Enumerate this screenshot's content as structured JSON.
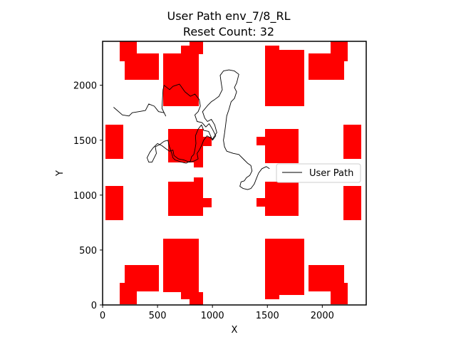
{
  "chart_data": {
    "type": "line",
    "title": "User Path env_7/8_RL",
    "subtitle": "Reset Count: 32",
    "xlabel": "X",
    "ylabel": "Y",
    "xlim": [
      0,
      2400
    ],
    "ylim": [
      0,
      2400
    ],
    "xticks": [
      0,
      500,
      1000,
      1500,
      2000
    ],
    "yticks": [
      0,
      500,
      1000,
      1500,
      2000
    ],
    "grid": false,
    "legend": {
      "placement": "right",
      "entries": [
        "User Path"
      ]
    },
    "series": [
      {
        "name": "User Path",
        "color": "#000000",
        "points": [
          [
            100,
            1800
          ],
          [
            180,
            1730
          ],
          [
            240,
            1720
          ],
          [
            270,
            1750
          ],
          [
            330,
            1760
          ],
          [
            390,
            1770
          ],
          [
            420,
            1830
          ],
          [
            470,
            1810
          ],
          [
            510,
            1760
          ],
          [
            560,
            1750
          ],
          [
            575,
            1720
          ],
          [
            540,
            1790
          ],
          [
            550,
            1960
          ],
          [
            560,
            2000
          ],
          [
            610,
            1960
          ],
          [
            640,
            1990
          ],
          [
            700,
            2010
          ],
          [
            750,
            1940
          ],
          [
            800,
            1900
          ],
          [
            840,
            1920
          ],
          [
            880,
            1870
          ],
          [
            890,
            1810
          ],
          [
            870,
            1760
          ],
          [
            840,
            1730
          ],
          [
            860,
            1670
          ],
          [
            905,
            1660
          ],
          [
            940,
            1620
          ],
          [
            970,
            1650
          ],
          [
            1000,
            1600
          ],
          [
            1030,
            1540
          ],
          [
            1000,
            1500
          ],
          [
            965,
            1580
          ],
          [
            920,
            1590
          ],
          [
            900,
            1640
          ],
          [
            870,
            1600
          ],
          [
            845,
            1540
          ],
          [
            850,
            1470
          ],
          [
            840,
            1410
          ],
          [
            830,
            1370
          ],
          [
            810,
            1350
          ],
          [
            800,
            1310
          ],
          [
            760,
            1290
          ],
          [
            720,
            1300
          ],
          [
            660,
            1320
          ],
          [
            640,
            1340
          ],
          [
            630,
            1380
          ],
          [
            605,
            1450
          ],
          [
            595,
            1500
          ],
          [
            560,
            1490
          ],
          [
            520,
            1460
          ],
          [
            480,
            1440
          ],
          [
            490,
            1380
          ],
          [
            450,
            1300
          ],
          [
            420,
            1300
          ],
          [
            405,
            1340
          ],
          [
            430,
            1390
          ],
          [
            460,
            1430
          ],
          [
            500,
            1470
          ],
          [
            540,
            1450
          ],
          [
            580,
            1420
          ],
          [
            610,
            1400
          ],
          [
            640,
            1410
          ],
          [
            650,
            1360
          ],
          [
            690,
            1330
          ],
          [
            740,
            1320
          ],
          [
            790,
            1300
          ],
          [
            835,
            1310
          ],
          [
            870,
            1330
          ],
          [
            860,
            1380
          ],
          [
            880,
            1410
          ],
          [
            900,
            1450
          ],
          [
            920,
            1500
          ],
          [
            950,
            1540
          ],
          [
            1000,
            1510
          ],
          [
            1040,
            1570
          ],
          [
            1020,
            1640
          ],
          [
            990,
            1690
          ],
          [
            955,
            1670
          ],
          [
            930,
            1700
          ],
          [
            910,
            1760
          ],
          [
            960,
            1820
          ],
          [
            990,
            1850
          ],
          [
            1020,
            1870
          ],
          [
            1060,
            1900
          ],
          [
            1090,
            1960
          ],
          [
            1080,
            2020
          ],
          [
            1070,
            2090
          ],
          [
            1100,
            2130
          ],
          [
            1150,
            2140
          ],
          [
            1200,
            2130
          ],
          [
            1240,
            2100
          ],
          [
            1220,
            2020
          ],
          [
            1200,
            1980
          ],
          [
            1220,
            1940
          ],
          [
            1200,
            1880
          ],
          [
            1170,
            1850
          ],
          [
            1150,
            1780
          ],
          [
            1130,
            1720
          ],
          [
            1120,
            1640
          ],
          [
            1110,
            1560
          ],
          [
            1100,
            1500
          ],
          [
            1110,
            1440
          ],
          [
            1130,
            1400
          ],
          [
            1190,
            1380
          ],
          [
            1240,
            1370
          ],
          [
            1290,
            1320
          ],
          [
            1320,
            1290
          ],
          [
            1350,
            1270
          ],
          [
            1360,
            1220
          ],
          [
            1340,
            1180
          ],
          [
            1310,
            1160
          ],
          [
            1290,
            1130
          ],
          [
            1260,
            1120
          ],
          [
            1250,
            1080
          ],
          [
            1280,
            1060
          ],
          [
            1320,
            1050
          ],
          [
            1350,
            1060
          ],
          [
            1380,
            1100
          ],
          [
            1400,
            1150
          ],
          [
            1420,
            1200
          ],
          [
            1450,
            1240
          ],
          [
            1490,
            1260
          ],
          [
            1520,
            1240
          ]
        ]
      }
    ],
    "obstacles_color": "#ff0000"
  }
}
